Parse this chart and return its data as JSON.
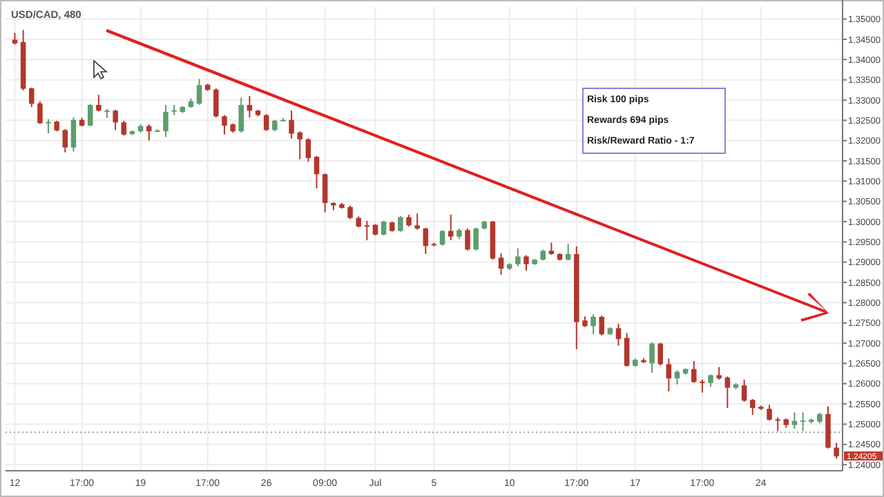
{
  "chart_data": {
    "type": "candlestick",
    "title": "USD/CAD, 480",
    "categories": [
      "12",
      null,
      null,
      null,
      null,
      null,
      null,
      null,
      "17:00",
      null,
      null,
      null,
      null,
      null,
      null,
      "19",
      null,
      null,
      null,
      null,
      null,
      null,
      null,
      "17:00",
      null,
      null,
      null,
      null,
      null,
      null,
      "26",
      null,
      null,
      null,
      null,
      null,
      null,
      "09:00",
      null,
      null,
      null,
      null,
      null,
      "Jul",
      null,
      null,
      null,
      null,
      null,
      null,
      "5",
      null,
      null,
      null,
      null,
      null,
      null,
      null,
      null,
      "10",
      null,
      null,
      null,
      null,
      null,
      null,
      null,
      "17:00",
      null,
      null,
      null,
      null,
      null,
      null,
      "17",
      null,
      null,
      null,
      null,
      null,
      null,
      null,
      "17:00",
      null,
      null,
      null,
      null,
      null,
      null,
      "24",
      null,
      null,
      null,
      null,
      null,
      null,
      null,
      null,
      null
    ],
    "ohlc": [
      [
        1.3449,
        1.3466,
        1.3437,
        1.344
      ],
      [
        1.3443,
        1.3473,
        1.3324,
        1.3328
      ],
      [
        1.3329,
        1.3331,
        1.3283,
        1.3291
      ],
      [
        1.3292,
        1.3297,
        1.3241,
        1.3243
      ],
      [
        1.3245,
        1.3253,
        1.3218,
        1.3246
      ],
      [
        1.3247,
        1.3249,
        1.3223,
        1.3225
      ],
      [
        1.3226,
        1.3228,
        1.3171,
        1.3183
      ],
      [
        1.3183,
        1.3257,
        1.3173,
        1.3251
      ],
      [
        1.3251,
        1.3256,
        1.3235,
        1.3237
      ],
      [
        1.3237,
        1.329,
        1.3235,
        1.3288
      ],
      [
        1.3288,
        1.3313,
        1.3272,
        1.3274
      ],
      [
        1.3273,
        1.3278,
        1.3256,
        1.3274
      ],
      [
        1.3274,
        1.3276,
        1.3226,
        1.3245
      ],
      [
        1.3245,
        1.3249,
        1.3212,
        1.3215
      ],
      [
        1.3216,
        1.3225,
        1.3214,
        1.3223
      ],
      [
        1.3223,
        1.324,
        1.322,
        1.3236
      ],
      [
        1.3236,
        1.324,
        1.32,
        1.3223
      ],
      [
        1.3224,
        1.3228,
        1.3222,
        1.3225
      ],
      [
        1.3223,
        1.3288,
        1.3209,
        1.3271
      ],
      [
        1.3274,
        1.3288,
        1.3263,
        1.3275
      ],
      [
        1.3271,
        1.3285,
        1.3268,
        1.3283
      ],
      [
        1.3283,
        1.3304,
        1.3281,
        1.3297
      ],
      [
        1.3291,
        1.3352,
        1.3288,
        1.3337
      ],
      [
        1.3338,
        1.334,
        1.3323,
        1.3325
      ],
      [
        1.3326,
        1.3329,
        1.3257,
        1.326
      ],
      [
        1.326,
        1.3263,
        1.3215,
        1.3237
      ],
      [
        1.324,
        1.3242,
        1.322,
        1.3223
      ],
      [
        1.3223,
        1.3306,
        1.322,
        1.3288
      ],
      [
        1.3288,
        1.331,
        1.3257,
        1.3274
      ],
      [
        1.3274,
        1.3276,
        1.326,
        1.3263
      ],
      [
        1.3263,
        1.3265,
        1.3224,
        1.3226
      ],
      [
        1.3226,
        1.3251,
        1.3223,
        1.3249
      ],
      [
        1.325,
        1.3256,
        1.3247,
        1.3251
      ],
      [
        1.3251,
        1.3274,
        1.3205,
        1.3217
      ],
      [
        1.322,
        1.3223,
        1.3154,
        1.3203
      ],
      [
        1.3203,
        1.3206,
        1.3148,
        1.3157
      ],
      [
        1.316,
        1.3162,
        1.3082,
        1.3117
      ],
      [
        1.3117,
        1.3119,
        1.3023,
        1.3046
      ],
      [
        1.3046,
        1.3048,
        1.3028,
        1.304
      ],
      [
        1.3043,
        1.3046,
        1.3032,
        1.3034
      ],
      [
        1.3036,
        1.304,
        1.3006,
        1.3009
      ],
      [
        1.3009,
        1.3013,
        1.2986,
        1.2988
      ],
      [
        1.2991,
        1.3002,
        1.2954,
        1.299
      ],
      [
        1.2992,
        1.2994,
        1.2966,
        1.2968
      ],
      [
        1.2968,
        1.3002,
        1.2966,
        1.3
      ],
      [
        1.2998,
        1.3,
        1.2975,
        1.2977
      ],
      [
        1.2977,
        1.3014,
        1.2975,
        1.3011
      ],
      [
        1.3011,
        1.3017,
        1.2988,
        1.2991
      ],
      [
        1.2991,
        1.302,
        1.298,
        1.2983
      ],
      [
        1.2983,
        1.2985,
        1.292,
        1.294
      ],
      [
        1.2945,
        1.2948,
        1.2939,
        1.2944
      ],
      [
        1.2943,
        1.2979,
        1.2941,
        1.2977
      ],
      [
        1.2977,
        1.3017,
        1.2954,
        1.2963
      ],
      [
        1.2963,
        1.2983,
        1.2957,
        1.2979
      ],
      [
        1.2979,
        1.2983,
        1.2929,
        1.2931
      ],
      [
        1.2931,
        1.2985,
        1.2929,
        1.2983
      ],
      [
        1.2983,
        1.3002,
        1.2981,
        1.3
      ],
      [
        1.3,
        1.3002,
        1.2906,
        1.2909
      ],
      [
        1.2911,
        1.2922,
        1.2869,
        1.2884
      ],
      [
        1.2884,
        1.2897,
        1.2881,
        1.2895
      ],
      [
        1.2895,
        1.2934,
        1.2889,
        1.2914
      ],
      [
        1.2914,
        1.2917,
        1.2879,
        1.2895
      ],
      [
        1.2895,
        1.2908,
        1.2893,
        1.2906
      ],
      [
        1.2906,
        1.2931,
        1.2904,
        1.2928
      ],
      [
        1.2928,
        1.2948,
        1.2918,
        1.292
      ],
      [
        1.292,
        1.2922,
        1.2904,
        1.2906
      ],
      [
        1.2906,
        1.2945,
        1.2904,
        1.292
      ],
      [
        1.292,
        1.2939,
        1.2685,
        1.2752
      ],
      [
        1.2756,
        1.2766,
        1.274,
        1.2742
      ],
      [
        1.2742,
        1.2771,
        1.2722,
        1.2765
      ],
      [
        1.2765,
        1.2768,
        1.2719,
        1.2722
      ],
      [
        1.2722,
        1.2739,
        1.272,
        1.2737
      ],
      [
        1.2737,
        1.2748,
        1.2694,
        1.271
      ],
      [
        1.2713,
        1.2725,
        1.2642,
        1.2644
      ],
      [
        1.2644,
        1.2662,
        1.2642,
        1.2659
      ],
      [
        1.2658,
        1.2663,
        1.2651,
        1.2653
      ],
      [
        1.265,
        1.2702,
        1.2627,
        1.2699
      ],
      [
        1.2699,
        1.2701,
        1.2645,
        1.2648
      ],
      [
        1.2648,
        1.2662,
        1.2581,
        1.2613
      ],
      [
        1.2613,
        1.2633,
        1.2598,
        1.2629
      ],
      [
        1.2625,
        1.2638,
        1.2622,
        1.2636
      ],
      [
        1.2636,
        1.2656,
        1.2602,
        1.2604
      ],
      [
        1.2605,
        1.261,
        1.2578,
        1.2604
      ],
      [
        1.2602,
        1.2623,
        1.2592,
        1.2621
      ],
      [
        1.2621,
        1.2641,
        1.261,
        1.2613
      ],
      [
        1.2615,
        1.2618,
        1.254,
        1.259
      ],
      [
        1.259,
        1.2601,
        1.2587,
        1.2598
      ],
      [
        1.2596,
        1.261,
        1.2555,
        1.2558
      ],
      [
        1.256,
        1.2562,
        1.2523,
        1.254
      ],
      [
        1.2543,
        1.2546,
        1.2535,
        1.2538
      ],
      [
        1.2538,
        1.2548,
        1.2509,
        1.2511
      ],
      [
        1.2512,
        1.2517,
        1.2483,
        1.2511
      ],
      [
        1.2512,
        1.2514,
        1.2491,
        1.2498
      ],
      [
        1.2498,
        1.2529,
        1.2488,
        1.2508
      ],
      [
        1.2508,
        1.2529,
        1.2483,
        1.2509
      ],
      [
        1.2506,
        1.2514,
        1.2502,
        1.2511
      ],
      [
        1.2506,
        1.2528,
        1.2502,
        1.2525
      ],
      [
        1.2525,
        1.2544,
        1.244,
        1.2442
      ],
      [
        1.2442,
        1.2454,
        1.2415,
        1.24205
      ]
    ],
    "colors": [
      "#b2372d",
      "#b2372d",
      "#b2372d",
      "#b2372d",
      "#5e9d6e",
      "#b2372d",
      "#b2372d",
      "#5e9d6e",
      "#b2372d",
      "#5e9d6e",
      "#b2372d",
      "#5e9d6e",
      "#b2372d",
      "#b2372d",
      "#5e9d6e",
      "#5e9d6e",
      "#b2372d",
      "#5e9d6e",
      "#5e9d6e",
      "#5e9d6e",
      "#5e9d6e",
      "#5e9d6e",
      "#5e9d6e",
      "#b2372d",
      "#b2372d",
      "#b2372d",
      "#b2372d",
      "#5e9d6e",
      "#b2372d",
      "#b2372d",
      "#b2372d",
      "#5e9d6e",
      "#5e9d6e",
      "#b2372d",
      "#b2372d",
      "#b2372d",
      "#b2372d",
      "#b2372d",
      "#b2372d",
      "#b2372d",
      "#b2372d",
      "#b2372d",
      "#b2372d",
      "#b2372d",
      "#5e9d6e",
      "#b2372d",
      "#5e9d6e",
      "#b2372d",
      "#b2372d",
      "#b2372d",
      "#b2372d",
      "#5e9d6e",
      "#b2372d",
      "#5e9d6e",
      "#b2372d",
      "#5e9d6e",
      "#5e9d6e",
      "#b2372d",
      "#b2372d",
      "#5e9d6e",
      "#5e9d6e",
      "#b2372d",
      "#5e9d6e",
      "#5e9d6e",
      "#b2372d",
      "#b2372d",
      "#5e9d6e",
      "#b2372d",
      "#b2372d",
      "#5e9d6e",
      "#b2372d",
      "#5e9d6e",
      "#b2372d",
      "#b2372d",
      "#5e9d6e",
      "#b2372d",
      "#5e9d6e",
      "#b2372d",
      "#b2372d",
      "#5e9d6e",
      "#5e9d6e",
      "#b2372d",
      "#b2372d",
      "#5e9d6e",
      "#b2372d",
      "#b2372d",
      "#5e9d6e",
      "#b2372d",
      "#b2372d",
      "#b2372d",
      "#b2372d",
      "#b2372d",
      "#b2372d",
      "#5e9d6e",
      "#5e9d6e",
      "#5e9d6e",
      "#5e9d6e",
      "#b2372d",
      "#b2372d"
    ],
    "ylim": [
      1.2385,
      1.353
    ],
    "yticks": [
      {
        "value": 1.24,
        "label": "1.24000"
      },
      {
        "value": 1.245,
        "label": "1.24500"
      },
      {
        "value": 1.25,
        "label": "1.25000"
      },
      {
        "value": 1.255,
        "label": "1.25500"
      },
      {
        "value": 1.26,
        "label": "1.26000"
      },
      {
        "value": 1.265,
        "label": "1.26500"
      },
      {
        "value": 1.27,
        "label": "1.27000"
      },
      {
        "value": 1.275,
        "label": "1.27500"
      },
      {
        "value": 1.28,
        "label": "1.28000"
      },
      {
        "value": 1.285,
        "label": "1.28500"
      },
      {
        "value": 1.29,
        "label": "1.29000"
      },
      {
        "value": 1.295,
        "label": "1.29500"
      },
      {
        "value": 1.3,
        "label": "1.30000"
      },
      {
        "value": 1.305,
        "label": "1.30500"
      },
      {
        "value": 1.31,
        "label": "1.31000"
      },
      {
        "value": 1.315,
        "label": "1.31500"
      },
      {
        "value": 1.32,
        "label": "1.32000"
      },
      {
        "value": 1.325,
        "label": "1.32500"
      },
      {
        "value": 1.33,
        "label": "1.33000"
      },
      {
        "value": 1.335,
        "label": "1.33500"
      },
      {
        "value": 1.34,
        "label": "1.34000"
      },
      {
        "value": 1.345,
        "label": "1.34500"
      },
      {
        "value": 1.35,
        "label": "1.35000"
      }
    ],
    "grid": true,
    "ref_lines": [
      {
        "axis": "y",
        "value": 1.248,
        "color": "#9a9a9a",
        "line_style": "dotted"
      }
    ],
    "annotations": [
      "Risk 100 pips",
      "Rewards 694 pips",
      "Risk/Reward Ratio - 1:7",
      "1.24205"
    ]
  }
}
